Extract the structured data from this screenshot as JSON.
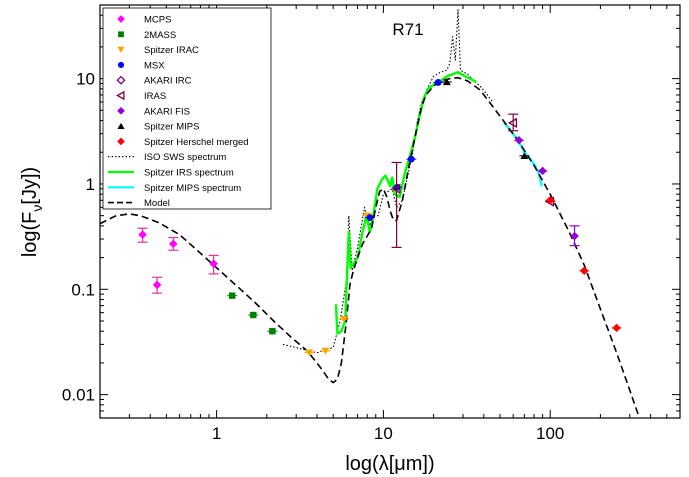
{
  "chart_data": {
    "type": "scatter",
    "title": "R71",
    "xlabel": "log(λ[μm])",
    "ylabel": "log(F",
    "ylabel_sub": "ν",
    "ylabel_end": "[Jy])",
    "x_scale": "log",
    "y_scale": "log",
    "xlim": [
      0.2,
      600
    ],
    "ylim": [
      0.006,
      50
    ],
    "x_ticks": [
      {
        "value": 1,
        "label": "1"
      },
      {
        "value": 10,
        "label": "10"
      },
      {
        "value": 100,
        "label": "100"
      }
    ],
    "y_ticks": [
      {
        "value": 0.01,
        "label": "0.01"
      },
      {
        "value": 0.1,
        "label": "0.1"
      },
      {
        "value": 1,
        "label": "1"
      },
      {
        "value": 10,
        "label": "10"
      }
    ],
    "grid": false,
    "legend_position": "top-left",
    "series": [
      {
        "name": "MCPS",
        "kind": "points",
        "marker": "diamond",
        "color": "#ff00ff",
        "errcolor": "#e0309f",
        "points": [
          {
            "x": 0.36,
            "y": 0.33,
            "yerr": [
              0.28,
              0.38
            ]
          },
          {
            "x": 0.44,
            "y": 0.11,
            "yerr": [
              0.092,
              0.13
            ]
          },
          {
            "x": 0.55,
            "y": 0.27,
            "yerr": [
              0.235,
              0.31
            ]
          },
          {
            "x": 0.96,
            "y": 0.175,
            "yerr": [
              0.14,
              0.21
            ]
          }
        ]
      },
      {
        "name": "2MASS",
        "kind": "points",
        "marker": "square",
        "color": "#008000",
        "errcolor": "#008000",
        "points": [
          {
            "x": 1.24,
            "y": 0.087
          },
          {
            "x": 1.66,
            "y": 0.057
          },
          {
            "x": 2.16,
            "y": 0.04
          }
        ]
      },
      {
        "name": "Spitzer IRAC",
        "kind": "points",
        "marker": "triangle-down",
        "color": "#ffa500",
        "errcolor": "#ffa500",
        "points": [
          {
            "x": 3.6,
            "y": 0.025
          },
          {
            "x": 4.5,
            "y": 0.026
          },
          {
            "x": 5.8,
            "y": 0.052
          },
          {
            "x": 8.0,
            "y": 0.5
          }
        ]
      },
      {
        "name": "MSX",
        "kind": "points",
        "marker": "circle",
        "color": "#0000ff",
        "errcolor": "#0000ff",
        "points": [
          {
            "x": 8.3,
            "y": 0.48
          },
          {
            "x": 12.1,
            "y": 0.93
          },
          {
            "x": 14.7,
            "y": 1.72
          },
          {
            "x": 21.3,
            "y": 9.2
          }
        ]
      },
      {
        "name": "AKARI IRC",
        "kind": "points",
        "marker": "diamond-open",
        "color": "#800080",
        "errcolor": "#800080",
        "points": []
      },
      {
        "name": "IRAS",
        "kind": "points",
        "marker": "triangle-left-open",
        "color": "#800040",
        "errcolor": "#800040",
        "points": [
          {
            "x": 12.0,
            "y": 0.9,
            "yerr": [
              0.25,
              1.6
            ]
          },
          {
            "x": 60,
            "y": 3.8,
            "yerr": [
              3.2,
              4.6
            ]
          },
          {
            "x": 100,
            "y": 0.68
          }
        ]
      },
      {
        "name": "AKARI FIS",
        "kind": "points",
        "marker": "diamond",
        "color": "#9400d3",
        "errcolor": "#9400d3",
        "points": [
          {
            "x": 65,
            "y": 2.6
          },
          {
            "x": 90,
            "y": 1.33
          },
          {
            "x": 140,
            "y": 0.32,
            "yerr": [
              0.26,
              0.4
            ]
          }
        ]
      },
      {
        "name": "Spitzer MIPS",
        "kind": "points",
        "marker": "triangle-up",
        "color": "#000000",
        "errcolor": "#000000",
        "points": [
          {
            "x": 24,
            "y": 9.3
          },
          {
            "x": 70,
            "y": 1.85
          }
        ]
      },
      {
        "name": "Spitzer Herschel merged",
        "kind": "points",
        "marker": "diamond",
        "color": "#ff0000",
        "errcolor": "#ff0000",
        "points": [
          {
            "x": 100,
            "y": 0.7
          },
          {
            "x": 160,
            "y": 0.15
          },
          {
            "x": 250,
            "y": 0.043
          }
        ]
      },
      {
        "name": "ISO SWS spectrum",
        "kind": "line",
        "style": "dotted",
        "color": "#000000",
        "width": 1.1,
        "points": [
          [
            2.5,
            0.03
          ],
          [
            4.0,
            0.025
          ],
          [
            5.0,
            0.028
          ],
          [
            5.5,
            0.05
          ],
          [
            6.0,
            0.12
          ],
          [
            6.2,
            0.5
          ],
          [
            6.5,
            0.15
          ],
          [
            7.0,
            0.25
          ],
          [
            7.7,
            0.6
          ],
          [
            8.3,
            0.4
          ],
          [
            8.6,
            0.5
          ],
          [
            9.3,
            0.5
          ],
          [
            10,
            0.8
          ],
          [
            11.3,
            0.9
          ],
          [
            12,
            0.6
          ],
          [
            13,
            0.7
          ],
          [
            14,
            1.2
          ],
          [
            15,
            2.0
          ],
          [
            16,
            4.0
          ],
          [
            17,
            6.0
          ],
          [
            18,
            7.5
          ],
          [
            19,
            9.0
          ],
          [
            20,
            10.5
          ],
          [
            22,
            11.5
          ],
          [
            24,
            12.0
          ],
          [
            25,
            14.0
          ],
          [
            26,
            25.0
          ],
          [
            27,
            15.0
          ],
          [
            28,
            45.0
          ],
          [
            29,
            12.0
          ],
          [
            32,
            11.0
          ],
          [
            35,
            9.5
          ],
          [
            38,
            8.5
          ],
          [
            42,
            7.0
          ],
          [
            45,
            6.0
          ]
        ]
      },
      {
        "name": "Spitzer IRS spectrum",
        "kind": "line",
        "style": "solid",
        "color": "#00ff00",
        "width": 2.4,
        "points": [
          [
            5.2,
            0.072
          ],
          [
            5.3,
            0.038
          ],
          [
            5.6,
            0.04
          ],
          [
            5.9,
            0.05
          ],
          [
            6.2,
            0.35
          ],
          [
            6.35,
            0.16
          ],
          [
            6.7,
            0.18
          ],
          [
            7.0,
            0.2
          ],
          [
            7.5,
            0.35
          ],
          [
            7.9,
            0.5
          ],
          [
            8.3,
            0.35
          ],
          [
            8.6,
            0.45
          ],
          [
            9.2,
            0.9
          ],
          [
            9.8,
            1.1
          ],
          [
            10.3,
            1.2
          ],
          [
            11.0,
            0.95
          ],
          [
            11.3,
            1.15
          ],
          [
            11.7,
            0.8
          ],
          [
            12.5,
            0.75
          ],
          [
            13.5,
            1.3
          ],
          [
            14.5,
            1.9
          ],
          [
            15.5,
            2.8
          ],
          [
            16.5,
            4.5
          ],
          [
            17.5,
            6.5
          ],
          [
            18.5,
            8.0
          ],
          [
            19.5,
            8.5
          ],
          [
            20.5,
            9.0
          ],
          [
            22,
            9.5
          ],
          [
            24,
            10.5
          ],
          [
            26,
            11.0
          ],
          [
            28,
            11.5
          ],
          [
            30,
            10.8
          ],
          [
            33,
            10.0
          ],
          [
            36,
            9.3
          ]
        ]
      },
      {
        "name": "Spitzer MIPS spectrum",
        "kind": "line",
        "style": "solid",
        "color": "#00ffff",
        "width": 2.4,
        "points": [
          [
            53,
            3.8
          ],
          [
            58,
            3.2
          ],
          [
            62,
            2.8
          ],
          [
            66,
            2.4
          ],
          [
            70,
            2.0
          ],
          [
            75,
            1.75
          ],
          [
            80,
            1.55
          ],
          [
            85,
            1.3
          ],
          [
            89,
            0.95
          ]
        ]
      },
      {
        "name": "Model",
        "kind": "line",
        "style": "dashed",
        "color": "#000000",
        "width": 1.6,
        "points": [
          [
            0.2,
            0.42
          ],
          [
            0.25,
            0.5
          ],
          [
            0.3,
            0.52
          ],
          [
            0.35,
            0.5
          ],
          [
            0.45,
            0.43
          ],
          [
            0.6,
            0.33
          ],
          [
            0.8,
            0.22
          ],
          [
            1.0,
            0.16
          ],
          [
            1.3,
            0.11
          ],
          [
            1.7,
            0.075
          ],
          [
            2.2,
            0.05
          ],
          [
            2.8,
            0.035
          ],
          [
            3.5,
            0.026
          ],
          [
            4.2,
            0.018
          ],
          [
            4.7,
            0.014
          ],
          [
            5.0,
            0.013
          ],
          [
            5.3,
            0.014
          ],
          [
            5.6,
            0.02
          ],
          [
            6.0,
            0.05
          ],
          [
            6.3,
            0.11
          ],
          [
            6.6,
            0.15
          ],
          [
            7.0,
            0.2
          ],
          [
            7.5,
            0.27
          ],
          [
            8.0,
            0.32
          ],
          [
            8.5,
            0.38
          ],
          [
            9.0,
            0.6
          ],
          [
            9.5,
            0.85
          ],
          [
            10,
            0.9
          ],
          [
            10.5,
            0.75
          ],
          [
            11,
            0.55
          ],
          [
            11.5,
            0.45
          ],
          [
            12,
            0.45
          ],
          [
            13,
            0.7
          ],
          [
            14,
            1.3
          ],
          [
            15,
            2.2
          ],
          [
            16,
            3.6
          ],
          [
            17,
            5.5
          ],
          [
            18,
            7.0
          ],
          [
            20,
            8.5
          ],
          [
            22,
            9.5
          ],
          [
            25,
            10.0
          ],
          [
            28,
            10.2
          ],
          [
            32,
            9.5
          ],
          [
            38,
            7.8
          ],
          [
            45,
            5.5
          ],
          [
            55,
            3.6
          ],
          [
            65,
            2.5
          ],
          [
            80,
            1.5
          ],
          [
            100,
            0.8
          ],
          [
            130,
            0.35
          ],
          [
            160,
            0.17
          ],
          [
            200,
            0.065
          ],
          [
            250,
            0.025
          ],
          [
            300,
            0.011
          ],
          [
            340,
            0.0062
          ]
        ]
      }
    ]
  }
}
